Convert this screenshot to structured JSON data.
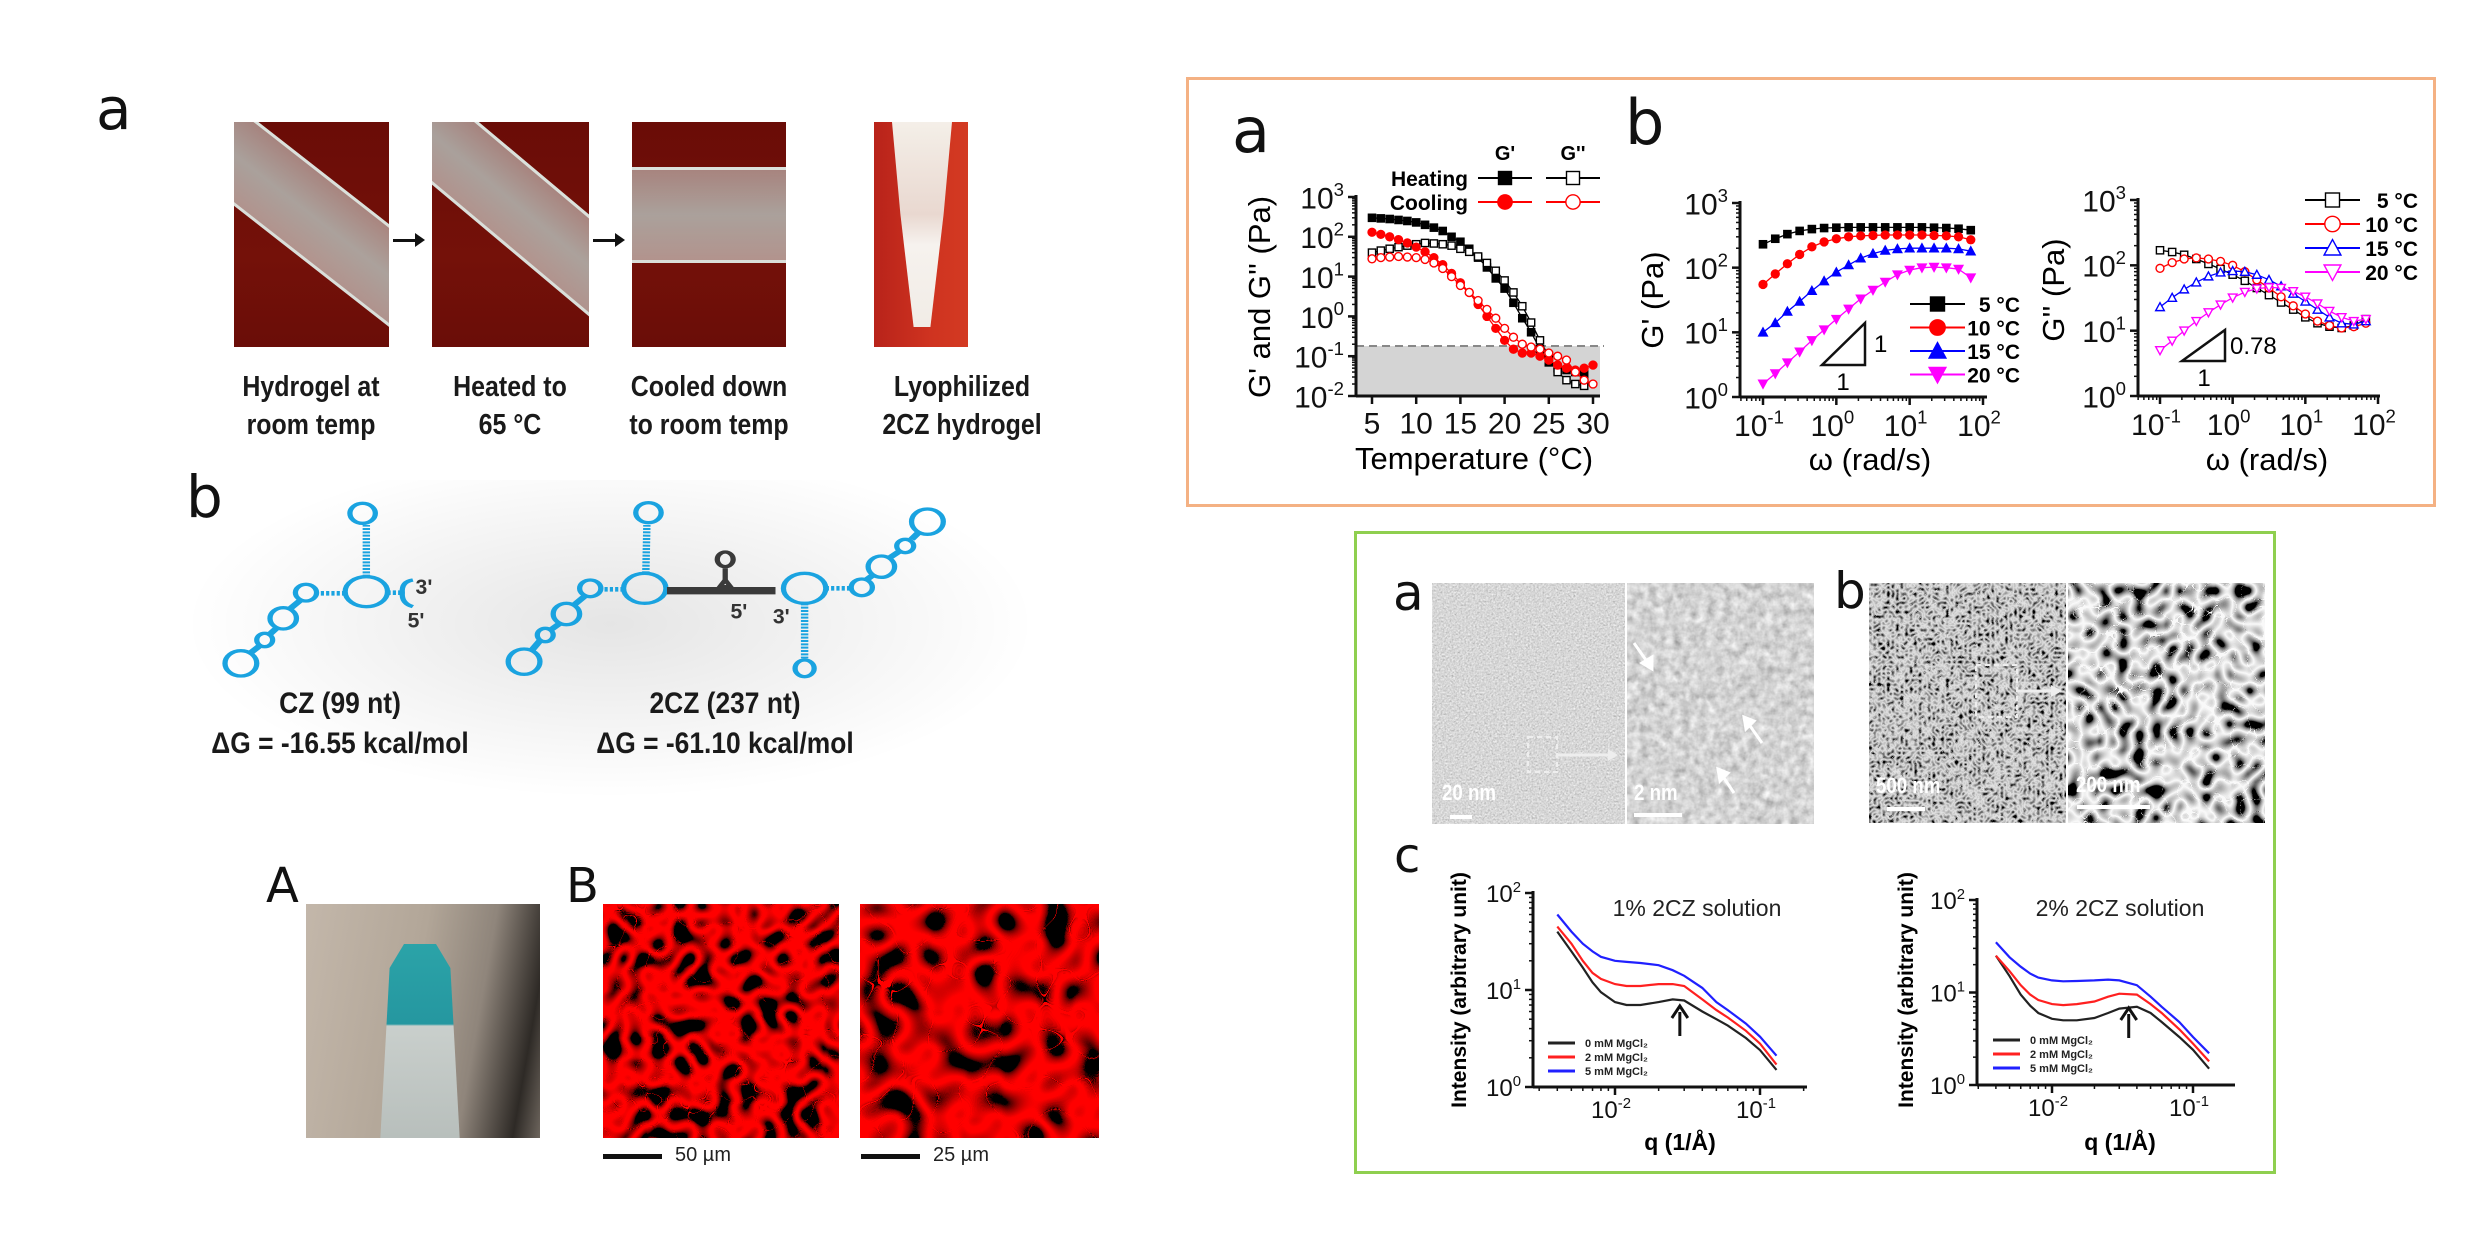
{
  "left_figure": {
    "panel_a": {
      "label": "a",
      "steps": [
        {
          "line1": "Hydrogel at",
          "line2": "room temp"
        },
        {
          "line1": "Heated to",
          "line2": "65 °C"
        },
        {
          "line1": "Cooled down",
          "line2": "to room temp"
        },
        {
          "line1": "Lyophilized",
          "line2": "2CZ hydrogel"
        }
      ],
      "step_arrow_icon": "arrow-right-icon"
    },
    "panel_b": {
      "label": "b",
      "structures": [
        {
          "name": "CZ (99 nt)",
          "energy": "ΔG = -16.55 kcal/mol",
          "end_3": "3'",
          "end_5": "5'"
        },
        {
          "name": "2CZ (237 nt)",
          "energy": "ΔG = -61.10 kcal/mol",
          "end_3": "3'",
          "end_5": "5'"
        }
      ],
      "structure_color": "#1aa3e0",
      "linker_color": "#3a3a3a"
    },
    "panel_A": {
      "label": "A"
    },
    "panel_B": {
      "label": "B",
      "scale_bars": [
        "50 µm",
        "25 µm"
      ]
    }
  },
  "rheology_box": {
    "border_color": "#f4b183",
    "panel_a_label": "a",
    "panel_b_label": "b"
  },
  "microscopy_box": {
    "border_color": "#8fcf4f",
    "panel_a_label": "a",
    "panel_b_label": "b",
    "panel_c_label": "c",
    "scale_bars": [
      "20 nm",
      "2 nm",
      "500 nm",
      "200 nm"
    ]
  },
  "chart_data": [
    {
      "type": "line",
      "xlabel": "Temperature (°C)",
      "ylabel": "G' and G'' (Pa)",
      "xscale": "linear",
      "yscale": "log",
      "xlim": [
        3.5,
        31
      ],
      "ylim": [
        0.01,
        1000
      ],
      "xticks": [
        5,
        10,
        15,
        20,
        25,
        30
      ],
      "yticks": [
        0.01,
        0.1,
        1,
        10,
        100,
        1000
      ],
      "legend": {
        "column_headers": [
          "G'",
          "G''"
        ],
        "row_labels": [
          "Heating",
          "Cooling"
        ],
        "placement": "top"
      },
      "threshold": 0.18,
      "series": [
        {
          "row": "Heating",
          "column": "G'",
          "color": "#000000",
          "marker": "square",
          "filled": true,
          "x": [
            5,
            6,
            7,
            8,
            9,
            10,
            11,
            12,
            13,
            14,
            15,
            16,
            17,
            18,
            19,
            20,
            21,
            22,
            23,
            24,
            25,
            26,
            27,
            28,
            29
          ],
          "values": [
            300,
            290,
            280,
            265,
            250,
            230,
            200,
            170,
            140,
            100,
            75,
            50,
            30,
            17,
            9,
            5,
            2.2,
            0.9,
            0.4,
            0.15,
            0.07,
            0.05,
            0.045,
            0.04,
            0.035
          ]
        },
        {
          "row": "Heating",
          "column": "G''",
          "color": "#000000",
          "marker": "square",
          "filled": false,
          "x": [
            5,
            6,
            7,
            8,
            9,
            10,
            11,
            12,
            13,
            14,
            15,
            16,
            17,
            18,
            19,
            20,
            21,
            22,
            23,
            24,
            25,
            26,
            27,
            28,
            29
          ],
          "values": [
            40,
            45,
            50,
            55,
            60,
            65,
            70,
            68,
            65,
            60,
            50,
            42,
            32,
            22,
            14,
            8,
            4,
            1.8,
            0.7,
            0.25,
            0.1,
            0.04,
            0.025,
            0.02,
            0.018
          ]
        },
        {
          "row": "Cooling",
          "column": "G'",
          "color": "#ff0000",
          "marker": "circle",
          "filled": true,
          "x": [
            5,
            6,
            7,
            8,
            9,
            10,
            11,
            12,
            13,
            14,
            15,
            16,
            17,
            18,
            19,
            20,
            21,
            22,
            23,
            24,
            25,
            26,
            27,
            28,
            29,
            30
          ],
          "values": [
            130,
            115,
            100,
            85,
            70,
            55,
            42,
            30,
            20,
            12,
            7,
            4,
            2,
            1,
            0.5,
            0.25,
            0.15,
            0.12,
            0.12,
            0.1,
            0.08,
            0.06,
            0.05,
            0.045,
            0.05,
            0.06
          ]
        },
        {
          "row": "Cooling",
          "column": "G''",
          "color": "#ff0000",
          "marker": "circle",
          "filled": false,
          "x": [
            5,
            6,
            7,
            8,
            9,
            10,
            11,
            12,
            13,
            14,
            15,
            16,
            17,
            18,
            19,
            20,
            21,
            22,
            23,
            24,
            25,
            26,
            27,
            28,
            29,
            30
          ],
          "values": [
            28,
            30,
            31,
            32,
            31,
            30,
            27,
            22,
            16,
            10,
            6,
            4,
            2.5,
            1.5,
            0.9,
            0.5,
            0.3,
            0.2,
            0.17,
            0.15,
            0.12,
            0.1,
            0.08,
            0.04,
            0.025,
            0.02
          ]
        }
      ]
    },
    {
      "type": "line",
      "xlabel": "ω (rad/s)",
      "ylabel": "G' (Pa)",
      "xscale": "log",
      "yscale": "log",
      "xlim": [
        0.08,
        100
      ],
      "ylim": [
        1,
        1000
      ],
      "xticks": [
        0.1,
        1,
        10,
        100
      ],
      "yticks": [
        1,
        10,
        100,
        1000
      ],
      "legend": {
        "placement": "right"
      },
      "slope_triangle": {
        "rise_label": "1",
        "run_label": "1"
      },
      "x": [
        0.1,
        0.147,
        0.215,
        0.316,
        0.464,
        0.681,
        1,
        1.47,
        2.15,
        3.16,
        4.64,
        6.81,
        10,
        14.7,
        21.5,
        31.6,
        46.4,
        68.1
      ],
      "series": [
        {
          "name": "5 °C",
          "color": "#000000",
          "marker": "square",
          "filled": true,
          "values": [
            230,
            280,
            330,
            370,
            395,
            410,
            415,
            420,
            420,
            420,
            420,
            420,
            420,
            420,
            415,
            410,
            400,
            380
          ]
        },
        {
          "name": "10 °C",
          "color": "#ff0000",
          "marker": "circle",
          "filled": true,
          "values": [
            55,
            80,
            115,
            160,
            210,
            250,
            280,
            300,
            310,
            315,
            320,
            320,
            320,
            320,
            315,
            310,
            300,
            270
          ]
        },
        {
          "name": "15 °C",
          "color": "#0000ff",
          "marker": "triangle-up",
          "filled": true,
          "values": [
            10,
            14,
            21,
            30,
            44,
            62,
            85,
            110,
            140,
            165,
            185,
            195,
            200,
            200,
            200,
            200,
            195,
            180
          ]
        },
        {
          "name": "20 °C",
          "color": "#ff00ff",
          "marker": "triangle-down",
          "filled": true,
          "values": [
            1.6,
            2.3,
            3.4,
            5,
            7.5,
            11,
            16,
            23,
            33,
            45,
            60,
            78,
            92,
            100,
            102,
            100,
            95,
            70
          ]
        }
      ]
    },
    {
      "type": "line",
      "xlabel": "ω (rad/s)",
      "ylabel": "G'' (Pa)",
      "xscale": "log",
      "yscale": "log",
      "xlim": [
        0.08,
        100
      ],
      "ylim": [
        1,
        1000
      ],
      "xticks": [
        0.1,
        1,
        10,
        100
      ],
      "yticks": [
        1,
        10,
        100,
        1000
      ],
      "legend": {
        "placement": "top-right"
      },
      "slope_triangle": {
        "rise_label": "0.78",
        "run_label": "1"
      },
      "x": [
        0.1,
        0.147,
        0.215,
        0.316,
        0.464,
        0.681,
        1,
        1.47,
        2.15,
        3.16,
        4.64,
        6.81,
        10,
        14.7,
        21.5,
        31.6,
        46.4,
        68.1
      ],
      "series": [
        {
          "name": "5 °C",
          "color": "#000000",
          "marker": "square",
          "filled": false,
          "values": [
            170,
            160,
            145,
            125,
            105,
            88,
            72,
            58,
            45,
            35,
            27,
            21,
            16,
            13,
            11.5,
            11,
            12,
            15
          ]
        },
        {
          "name": "10 °C",
          "color": "#ff0000",
          "marker": "circle",
          "filled": false,
          "values": [
            90,
            110,
            125,
            130,
            125,
            115,
            100,
            80,
            60,
            45,
            33,
            24,
            18,
            14,
            12,
            11,
            11.5,
            13
          ]
        },
        {
          "name": "15 °C",
          "color": "#0000ff",
          "marker": "triangle-up",
          "filled": false,
          "values": [
            23,
            32,
            43,
            55,
            68,
            78,
            82,
            80,
            72,
            60,
            48,
            37,
            28,
            21,
            16,
            13,
            12.5,
            14
          ]
        },
        {
          "name": "20 °C",
          "color": "#ff00ff",
          "marker": "triangle-down",
          "filled": false,
          "values": [
            5,
            7,
            10,
            14,
            19,
            25,
            32,
            39,
            44,
            46,
            45,
            40,
            33,
            26,
            20,
            16,
            14,
            15
          ]
        }
      ]
    },
    {
      "type": "line",
      "title": "1% 2CZ solution",
      "xlabel": "q (1/Å)",
      "ylabel": "Intensity (arbitrary unit)",
      "xscale": "log",
      "yscale": "log",
      "xlim": [
        0.0027,
        0.21
      ],
      "ylim": [
        1,
        100
      ],
      "xticks": [
        0.01,
        0.1
      ],
      "yticks": [
        1,
        10,
        100
      ],
      "legend": {
        "placement": "bottom-left"
      },
      "annotation": {
        "type": "arrow-up",
        "q": 0.028
      },
      "x": [
        0.004,
        0.005,
        0.006,
        0.007,
        0.008,
        0.01,
        0.012,
        0.015,
        0.02,
        0.025,
        0.03,
        0.04,
        0.05,
        0.06,
        0.08,
        0.1,
        0.13
      ],
      "series": [
        {
          "name": "0 mM MgCl₂",
          "color": "#222222",
          "values": [
            40,
            25,
            17,
            12,
            9.5,
            7.5,
            7,
            7,
            7.5,
            8,
            7.8,
            6,
            5,
            4.3,
            3.2,
            2.4,
            1.5
          ]
        },
        {
          "name": "2 mM MgCl₂",
          "color": "#ff2020",
          "values": [
            45,
            30,
            20,
            15,
            13,
            11.5,
            11,
            11,
            11.5,
            11.5,
            11,
            8,
            6.2,
            5.2,
            3.8,
            2.8,
            1.7
          ]
        },
        {
          "name": "5 mM MgCl₂",
          "color": "#2020ff",
          "values": [
            60,
            40,
            30,
            25,
            22,
            20,
            19.5,
            19,
            18,
            16,
            14,
            10.5,
            7.5,
            6.2,
            4.5,
            3.3,
            2.1
          ]
        }
      ]
    },
    {
      "type": "line",
      "title": "2% 2CZ solution",
      "xlabel": "q (1/Å)",
      "ylabel": "Intensity (arbitrary unit)",
      "xscale": "log",
      "yscale": "log",
      "xlim": [
        0.0027,
        0.21
      ],
      "ylim": [
        1,
        100
      ],
      "xticks": [
        0.01,
        0.1
      ],
      "yticks": [
        1,
        10,
        100
      ],
      "legend": {
        "placement": "bottom-left"
      },
      "annotation": {
        "type": "arrow-up",
        "q": 0.035
      },
      "x": [
        0.004,
        0.005,
        0.006,
        0.007,
        0.008,
        0.01,
        0.012,
        0.015,
        0.02,
        0.025,
        0.03,
        0.04,
        0.05,
        0.06,
        0.08,
        0.1,
        0.13
      ],
      "series": [
        {
          "name": "0 mM MgCl₂",
          "color": "#222222",
          "values": [
            25,
            15,
            9.5,
            7.2,
            6,
            5.2,
            5,
            5,
            5.3,
            6,
            6.7,
            7,
            6,
            4.8,
            3.3,
            2.4,
            1.5
          ]
        },
        {
          "name": "2 mM MgCl₂",
          "color": "#ff2020",
          "values": [
            25,
            17,
            12,
            9.5,
            8.3,
            7.5,
            7.3,
            7.5,
            8,
            9,
            9.7,
            9.5,
            7.5,
            6,
            4,
            2.8,
            1.8
          ]
        },
        {
          "name": "5 mM MgCl₂",
          "color": "#2020ff",
          "values": [
            35,
            24,
            19,
            16,
            14.5,
            13.5,
            13.2,
            13.3,
            13.5,
            13.8,
            13.5,
            12,
            9,
            7,
            4.8,
            3.3,
            2.2
          ]
        }
      ]
    }
  ]
}
